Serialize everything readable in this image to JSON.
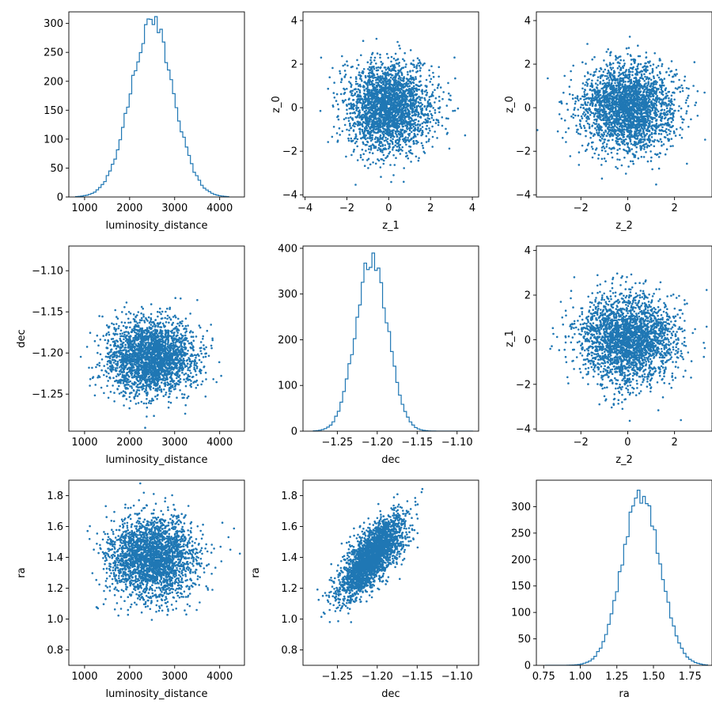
{
  "colors": {
    "series": "#1f77b4",
    "axes": "#000000",
    "background": "#ffffff"
  },
  "chart_data": [
    {
      "panel": "r0c0",
      "type": "histogram",
      "xlabel": "luminosity_distance",
      "ylabel": "",
      "xlim": [
        650,
        4550
      ],
      "ylim": [
        0,
        320
      ],
      "xticks": [
        1000,
        2000,
        3000,
        4000
      ],
      "yticks": [
        0,
        50,
        100,
        150,
        200,
        250,
        300
      ],
      "dist": {
        "kind": "normal",
        "mean": 2500,
        "sd": 480,
        "peak": 300
      },
      "range": [
        800,
        4200
      ]
    },
    {
      "panel": "r0c1",
      "type": "scatter",
      "xlabel": "z_1",
      "ylabel": "z_0",
      "xlim": [
        -4.1,
        4.3
      ],
      "ylim": [
        -4.1,
        4.4
      ],
      "xticks": [
        -4,
        -2,
        0,
        2,
        4
      ],
      "yticks": [
        -4,
        -2,
        0,
        2,
        4
      ],
      "dist": {
        "kind": "normal2d",
        "mx": 0,
        "sx": 1.0,
        "my": 0,
        "sy": 1.0,
        "rho": 0
      },
      "n_points": 2600
    },
    {
      "panel": "r0c2",
      "type": "scatter",
      "xlabel": "z_2",
      "ylabel": "z_0",
      "xlim": [
        -3.9,
        3.6
      ],
      "ylim": [
        -4.1,
        4.4
      ],
      "xticks": [
        -2,
        0,
        2
      ],
      "yticks": [
        -4,
        -2,
        0,
        2,
        4
      ],
      "dist": {
        "kind": "normal2d",
        "mx": 0,
        "sx": 1.0,
        "my": 0,
        "sy": 1.0,
        "rho": 0
      },
      "n_points": 2600
    },
    {
      "panel": "r1c0",
      "type": "scatter",
      "xlabel": "luminosity_distance",
      "ylabel": "dec",
      "xlim": [
        650,
        4550
      ],
      "ylim": [
        -1.295,
        -1.07
      ],
      "xticks": [
        1000,
        2000,
        3000,
        4000
      ],
      "yticks": [
        -1.25,
        -1.2,
        -1.15,
        -1.1
      ],
      "ytick_labels": [
        "−1.25",
        "−1.20",
        "−1.15",
        "−1.10"
      ],
      "dist": {
        "kind": "normal2d",
        "mx": 2500,
        "sx": 480,
        "my": -1.205,
        "sy": 0.022,
        "rho": 0
      },
      "n_points": 2600
    },
    {
      "panel": "r1c1",
      "type": "histogram",
      "xlabel": "dec",
      "ylabel": "",
      "xlim": [
        -1.293,
        -1.073
      ],
      "ylim": [
        0,
        405
      ],
      "xticks": [
        -1.25,
        -1.2,
        -1.15,
        -1.1
      ],
      "yticks": [
        0,
        100,
        200,
        300,
        400
      ],
      "xtick_labels": [
        "−1.25",
        "−1.20",
        "−1.15",
        "−1.10"
      ],
      "dist": {
        "kind": "normal",
        "mean": -1.207,
        "sd": 0.02,
        "peak": 380
      },
      "range": [
        -1.28,
        -1.08
      ]
    },
    {
      "panel": "r1c2",
      "type": "scatter",
      "xlabel": "z_2",
      "ylabel": "z_1",
      "xlim": [
        -3.9,
        3.6
      ],
      "ylim": [
        -4.1,
        4.2
      ],
      "xticks": [
        -2,
        0,
        2
      ],
      "yticks": [
        -4,
        -2,
        0,
        2,
        4
      ],
      "dist": {
        "kind": "normal2d",
        "mx": 0,
        "sx": 1.0,
        "my": 0,
        "sy": 1.0,
        "rho": 0
      },
      "n_points": 2600
    },
    {
      "panel": "r2c0",
      "type": "scatter",
      "xlabel": "luminosity_distance",
      "ylabel": "ra",
      "xlim": [
        650,
        4550
      ],
      "ylim": [
        0.7,
        1.9
      ],
      "xticks": [
        1000,
        2000,
        3000,
        4000
      ],
      "yticks": [
        0.8,
        1.0,
        1.2,
        1.4,
        1.6,
        1.8
      ],
      "ytick_labels": [
        "0.8",
        "1.0",
        "1.2",
        "1.4",
        "1.6",
        "1.8"
      ],
      "dist": {
        "kind": "normal2d",
        "mx": 2500,
        "sx": 480,
        "my": 1.4,
        "sy": 0.13,
        "rho": 0
      },
      "n_points": 2600
    },
    {
      "panel": "r2c1",
      "type": "scatter",
      "xlabel": "dec",
      "ylabel": "ra",
      "xlim": [
        -1.293,
        -1.073
      ],
      "ylim": [
        0.7,
        1.9
      ],
      "xticks": [
        -1.25,
        -1.2,
        -1.15,
        -1.1
      ],
      "yticks": [
        0.8,
        1.0,
        1.2,
        1.4,
        1.6,
        1.8
      ],
      "xtick_labels": [
        "−1.25",
        "−1.20",
        "−1.15",
        "−1.10"
      ],
      "ytick_labels": [
        "0.8",
        "1.0",
        "1.2",
        "1.4",
        "1.6",
        "1.8"
      ],
      "dist": {
        "kind": "normal2d",
        "mx": -1.207,
        "sx": 0.02,
        "my": 1.4,
        "sy": 0.13,
        "rho": 0.72
      },
      "n_points": 2600
    },
    {
      "panel": "r2c2",
      "type": "histogram",
      "xlabel": "ra",
      "ylabel": "",
      "xlim": [
        0.7,
        1.9
      ],
      "ylim": [
        0,
        350
      ],
      "xticks": [
        0.75,
        1.0,
        1.25,
        1.5,
        1.75
      ],
      "yticks": [
        0,
        50,
        100,
        150,
        200,
        250,
        300
      ],
      "xtick_labels": [
        "0.75",
        "1.00",
        "1.25",
        "1.50",
        "1.75"
      ],
      "dist": {
        "kind": "normal",
        "mean": 1.415,
        "sd": 0.13,
        "peak": 320
      },
      "range": [
        0.76,
        1.87
      ]
    }
  ]
}
